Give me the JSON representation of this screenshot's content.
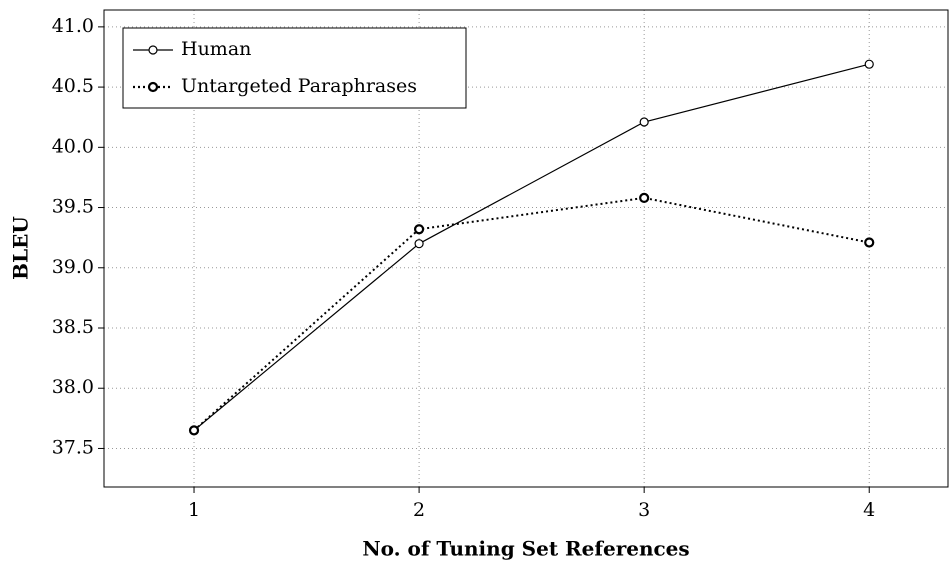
{
  "chart_data": {
    "type": "line",
    "x_label": "No. of Tuning Set References",
    "y_label": "BLEU",
    "x": [
      1,
      2,
      3,
      4
    ],
    "series": [
      {
        "name": "Human",
        "color": "#000000",
        "dash": "solid",
        "values": [
          37.65,
          39.2,
          40.21,
          40.69
        ]
      },
      {
        "name": "Untargeted Paraphrases",
        "color": "#000000",
        "dash": "dotted",
        "values": [
          37.65,
          39.32,
          39.58,
          39.21
        ]
      }
    ],
    "xlim": [
      0.6,
      4.35
    ],
    "ylim": [
      37.18,
      41.14
    ],
    "xticks": [
      1,
      2,
      3,
      4
    ],
    "yticks": [
      {
        "value": 37.5,
        "label": "37.5"
      },
      {
        "value": 38,
        "label": "38.0"
      },
      {
        "value": 38.5,
        "label": "38.5"
      },
      {
        "value": 39,
        "label": "39.0"
      },
      {
        "value": 39.5,
        "label": "39.5"
      },
      {
        "value": 40,
        "label": "40.0"
      },
      {
        "value": 40.5,
        "label": "40.5"
      },
      {
        "value": 41,
        "label": "41.0"
      }
    ],
    "grid": true,
    "legend": "upper left"
  }
}
